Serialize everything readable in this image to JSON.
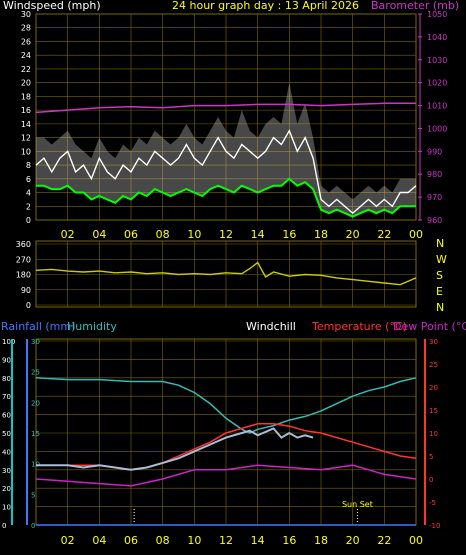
{
  "title": "24 hour graph day : 13 April 2026",
  "colors": {
    "grid": "#7a6a00",
    "axis_yellow": "#ffff00",
    "wind": "#ffffff",
    "gust_fill": "#cfcfcf",
    "wind_avg": "#00ff00",
    "baro": "#cc33cc",
    "dir": "#cccc00",
    "rain": "#4477ff",
    "humidity": "#33bbbb",
    "temp": "#ff3333",
    "dew": "#cc22cc",
    "windchill": "#aabbdd",
    "white": "#ffffff",
    "cyan": "#00cccc"
  },
  "chart_data": [
    {
      "type": "line",
      "name": "wind_baro",
      "title": "24 hour graph day : 13 April 2026",
      "left_label": "Windspeed (mph)",
      "right_label": "Barometer (mb)",
      "x_ticks": [
        "02",
        "04",
        "06",
        "08",
        "10",
        "12",
        "14",
        "16",
        "18",
        "20",
        "22",
        "00"
      ],
      "left_ticks": [
        0,
        2,
        4,
        6,
        8,
        10,
        12,
        14,
        16,
        18,
        20,
        22,
        24,
        26,
        28,
        30
      ],
      "right_ticks": [
        960,
        970,
        980,
        990,
        1000,
        1010,
        1020,
        1030,
        1040,
        1050
      ],
      "left_ylim": [
        0,
        30
      ],
      "right_ylim": [
        960,
        1050
      ],
      "windspeed_x": [
        0,
        0.5,
        1,
        1.5,
        2,
        2.5,
        3,
        3.5,
        4,
        4.5,
        5,
        5.5,
        6,
        6.5,
        7,
        7.5,
        8,
        8.5,
        9,
        9.5,
        10,
        10.5,
        11,
        11.5,
        12,
        12.5,
        13,
        13.5,
        14,
        14.5,
        15,
        15.5,
        16,
        16.5,
        17,
        17.5,
        18,
        18.5,
        19,
        19.5,
        20,
        20.5,
        21,
        21.5,
        22,
        22.5,
        23,
        23.5,
        24
      ],
      "windspeed": [
        8,
        9,
        7,
        9,
        10,
        7,
        8,
        6,
        9,
        7,
        6,
        8,
        7,
        9,
        8,
        10,
        9,
        8,
        9,
        11,
        9,
        8,
        10,
        12,
        10,
        9,
        11,
        10,
        9,
        10,
        12,
        11,
        13,
        10,
        12,
        9,
        3,
        2,
        3,
        2,
        1,
        2,
        3,
        2,
        3,
        2,
        4,
        4,
        5
      ],
      "gust": [
        12,
        12,
        11,
        12,
        13,
        11,
        10,
        9,
        12,
        10,
        9,
        11,
        10,
        12,
        11,
        13,
        12,
        11,
        12,
        14,
        12,
        11,
        13,
        15,
        13,
        12,
        16,
        13,
        12,
        14,
        15,
        14,
        20,
        14,
        17,
        12,
        5,
        4,
        5,
        4,
        3,
        4,
        5,
        4,
        5,
        4,
        6,
        6,
        6
      ],
      "wind_avg": [
        5,
        5,
        4.5,
        4.5,
        5,
        4,
        4,
        3,
        3.5,
        3,
        2.5,
        3.5,
        3,
        4,
        3.5,
        4.5,
        4,
        3.5,
        4,
        4.5,
        4,
        3.5,
        4.5,
        5,
        4.5,
        4,
        5,
        4.5,
        4,
        4.5,
        5,
        5,
        6,
        5,
        5.5,
        4.5,
        1.5,
        1,
        1.5,
        1,
        0.5,
        1,
        1.5,
        1,
        1.5,
        1,
        2,
        2,
        2
      ],
      "barometer_x": [
        0,
        2,
        4,
        6,
        8,
        10,
        12,
        14,
        16,
        18,
        20,
        22,
        24
      ],
      "barometer": [
        1007,
        1008,
        1009,
        1009.5,
        1009,
        1010,
        1010,
        1010.5,
        1010.5,
        1010,
        1010.5,
        1011,
        1011
      ]
    },
    {
      "type": "line",
      "name": "wind_direction",
      "y_ticks": [
        0,
        90,
        180,
        270,
        360
      ],
      "ylim": [
        0,
        360
      ],
      "compass": [
        "N",
        "W",
        "S",
        "E",
        "N"
      ],
      "x": [
        0,
        1,
        2,
        3,
        4,
        5,
        6,
        7,
        8,
        9,
        10,
        11,
        12,
        13,
        13.5,
        14,
        14.5,
        15,
        16,
        17,
        18,
        19,
        20,
        21,
        22,
        23,
        24
      ],
      "values": [
        205,
        210,
        200,
        195,
        200,
        190,
        195,
        185,
        190,
        180,
        185,
        180,
        190,
        185,
        215,
        250,
        165,
        195,
        170,
        180,
        175,
        160,
        150,
        140,
        130,
        120,
        160
      ]
    },
    {
      "type": "line",
      "name": "temperature",
      "labels": {
        "rain": "Rainfall (mm)",
        "humidity": "Humidity",
        "windchill": "Windchill",
        "temp": "Temperature (°C)",
        "dew": "Dew Point (°C)"
      },
      "x_ticks": [
        "02",
        "04",
        "06",
        "08",
        "10",
        "12",
        "14",
        "16",
        "18",
        "20",
        "22",
        "00"
      ],
      "humidity_ticks": [
        0,
        10,
        20,
        30,
        40,
        50,
        60,
        70,
        80,
        90,
        100
      ],
      "rain_ticks": [
        0,
        5,
        10,
        15,
        20,
        25,
        30
      ],
      "temp_ticks": [
        -10,
        -5,
        0,
        5,
        10,
        15,
        20,
        25,
        30
      ],
      "humidity_ylim": [
        0,
        100
      ],
      "rain_ylim": [
        0,
        30
      ],
      "temp_ylim": [
        -10,
        30
      ],
      "annotations": [
        {
          "text": "Sun Set",
          "x": 20.3
        }
      ],
      "time_markers": [
        6.2,
        20.3
      ],
      "rain_x": [
        0,
        24
      ],
      "rain": [
        0,
        0
      ],
      "humidity_x": [
        0,
        2,
        4,
        6,
        8,
        9,
        10,
        11,
        12,
        13,
        13.5,
        14,
        15,
        16,
        17,
        18,
        19,
        20,
        21,
        22,
        23,
        24
      ],
      "humidity": [
        80,
        79,
        79,
        78,
        78,
        76,
        72,
        66,
        58,
        52,
        50,
        52,
        54,
        57,
        59,
        62,
        66,
        70,
        73,
        75,
        78,
        80
      ],
      "temp_x": [
        0,
        2,
        4,
        6,
        7,
        8,
        9,
        10,
        11,
        12,
        13,
        14,
        15,
        16,
        17,
        18,
        19,
        20,
        21,
        22,
        23,
        24
      ],
      "temp": [
        3,
        3,
        3,
        2,
        2.5,
        3.5,
        5,
        6.5,
        8,
        10,
        11,
        12,
        12,
        11.5,
        10.5,
        10,
        9,
        8,
        7,
        6,
        5,
        4.5
      ],
      "windchill_x": [
        0,
        1,
        2,
        3,
        4,
        5,
        6,
        7,
        8,
        9,
        10,
        11,
        12,
        13,
        13.5,
        14,
        15,
        15.5,
        16,
        16.5,
        17,
        17.5
      ],
      "windchill": [
        3,
        3,
        3,
        2.5,
        3,
        2.5,
        2,
        2.5,
        3.5,
        4.5,
        6,
        7.5,
        9,
        10,
        10.5,
        9.5,
        11,
        9,
        10,
        9,
        9.5,
        9
      ],
      "dew_x": [
        0,
        2,
        4,
        6,
        8,
        10,
        12,
        14,
        16,
        18,
        20,
        22,
        24
      ],
      "dew": [
        0,
        -0.5,
        -1,
        -1.5,
        0,
        2,
        2,
        3,
        2.5,
        2,
        3,
        1,
        0
      ]
    }
  ]
}
